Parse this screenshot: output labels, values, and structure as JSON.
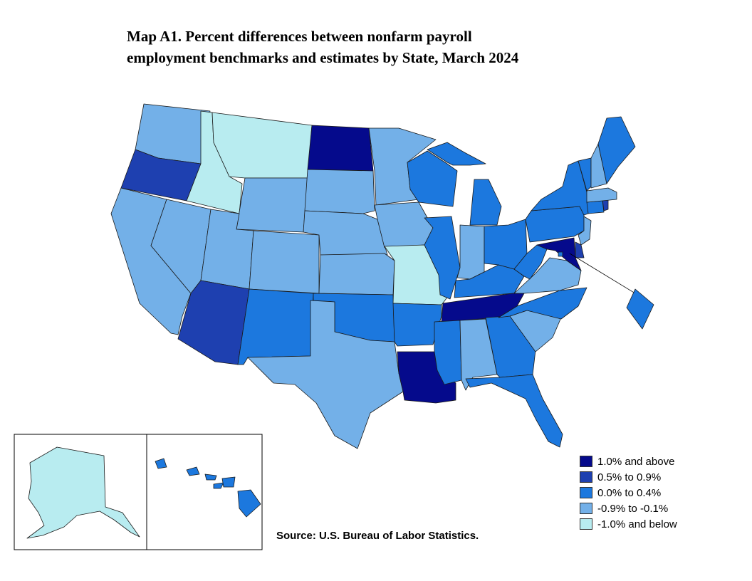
{
  "title": {
    "line1": "Map A1. Percent differences between nonfarm payroll",
    "line2": "employment benchmarks and estimates by State, March 2024"
  },
  "source": "Source:  U.S. Bureau of Labor Statistics.",
  "colors": {
    "c1": "#050a8c",
    "c2": "#1e40b0",
    "c3": "#1c78de",
    "c4": "#73b0e8",
    "c5": "#b8ecf0"
  },
  "legend": [
    {
      "label": "1.0% and above",
      "color": "#050a8c"
    },
    {
      "label": "0.5% to 0.9%",
      "color": "#1e40b0"
    },
    {
      "label": "0.0% to 0.4%",
      "color": "#1c78de"
    },
    {
      "label": "-0.9% to -0.1%",
      "color": "#73b0e8"
    },
    {
      "label": "-1.0% and below",
      "color": "#b8ecf0"
    }
  ],
  "states": {
    "WA": "c4",
    "OR": "c2",
    "CA": "c4",
    "ID": "c5",
    "MT": "c5",
    "WY": "c4",
    "NV": "c4",
    "UT": "c4",
    "AZ": "c2",
    "CO": "c4",
    "NM": "c3",
    "ND": "c1",
    "SD": "c4",
    "NE": "c4",
    "KS": "c4",
    "OK": "c3",
    "TX": "c4",
    "MN": "c4",
    "IA": "c4",
    "MO": "c5",
    "AR": "c3",
    "LA": "c1",
    "WI": "c3",
    "IL": "c3",
    "MI": "c3",
    "IN": "c4",
    "OH": "c3",
    "KY": "c3",
    "TN": "c1",
    "MS": "c3",
    "AL": "c4",
    "GA": "c3",
    "FL": "c3",
    "SC": "c4",
    "NC": "c3",
    "VA": "c4",
    "WV": "c3",
    "PA": "c3",
    "NY": "c3",
    "NJ": "c4",
    "DE": "c2",
    "MD": "c1",
    "DC": "c3",
    "CT": "c3",
    "RI": "c2",
    "MA": "c4",
    "VT": "c3",
    "NH": "c4",
    "ME": "c3",
    "AK": "c5",
    "HI": "c3"
  }
}
